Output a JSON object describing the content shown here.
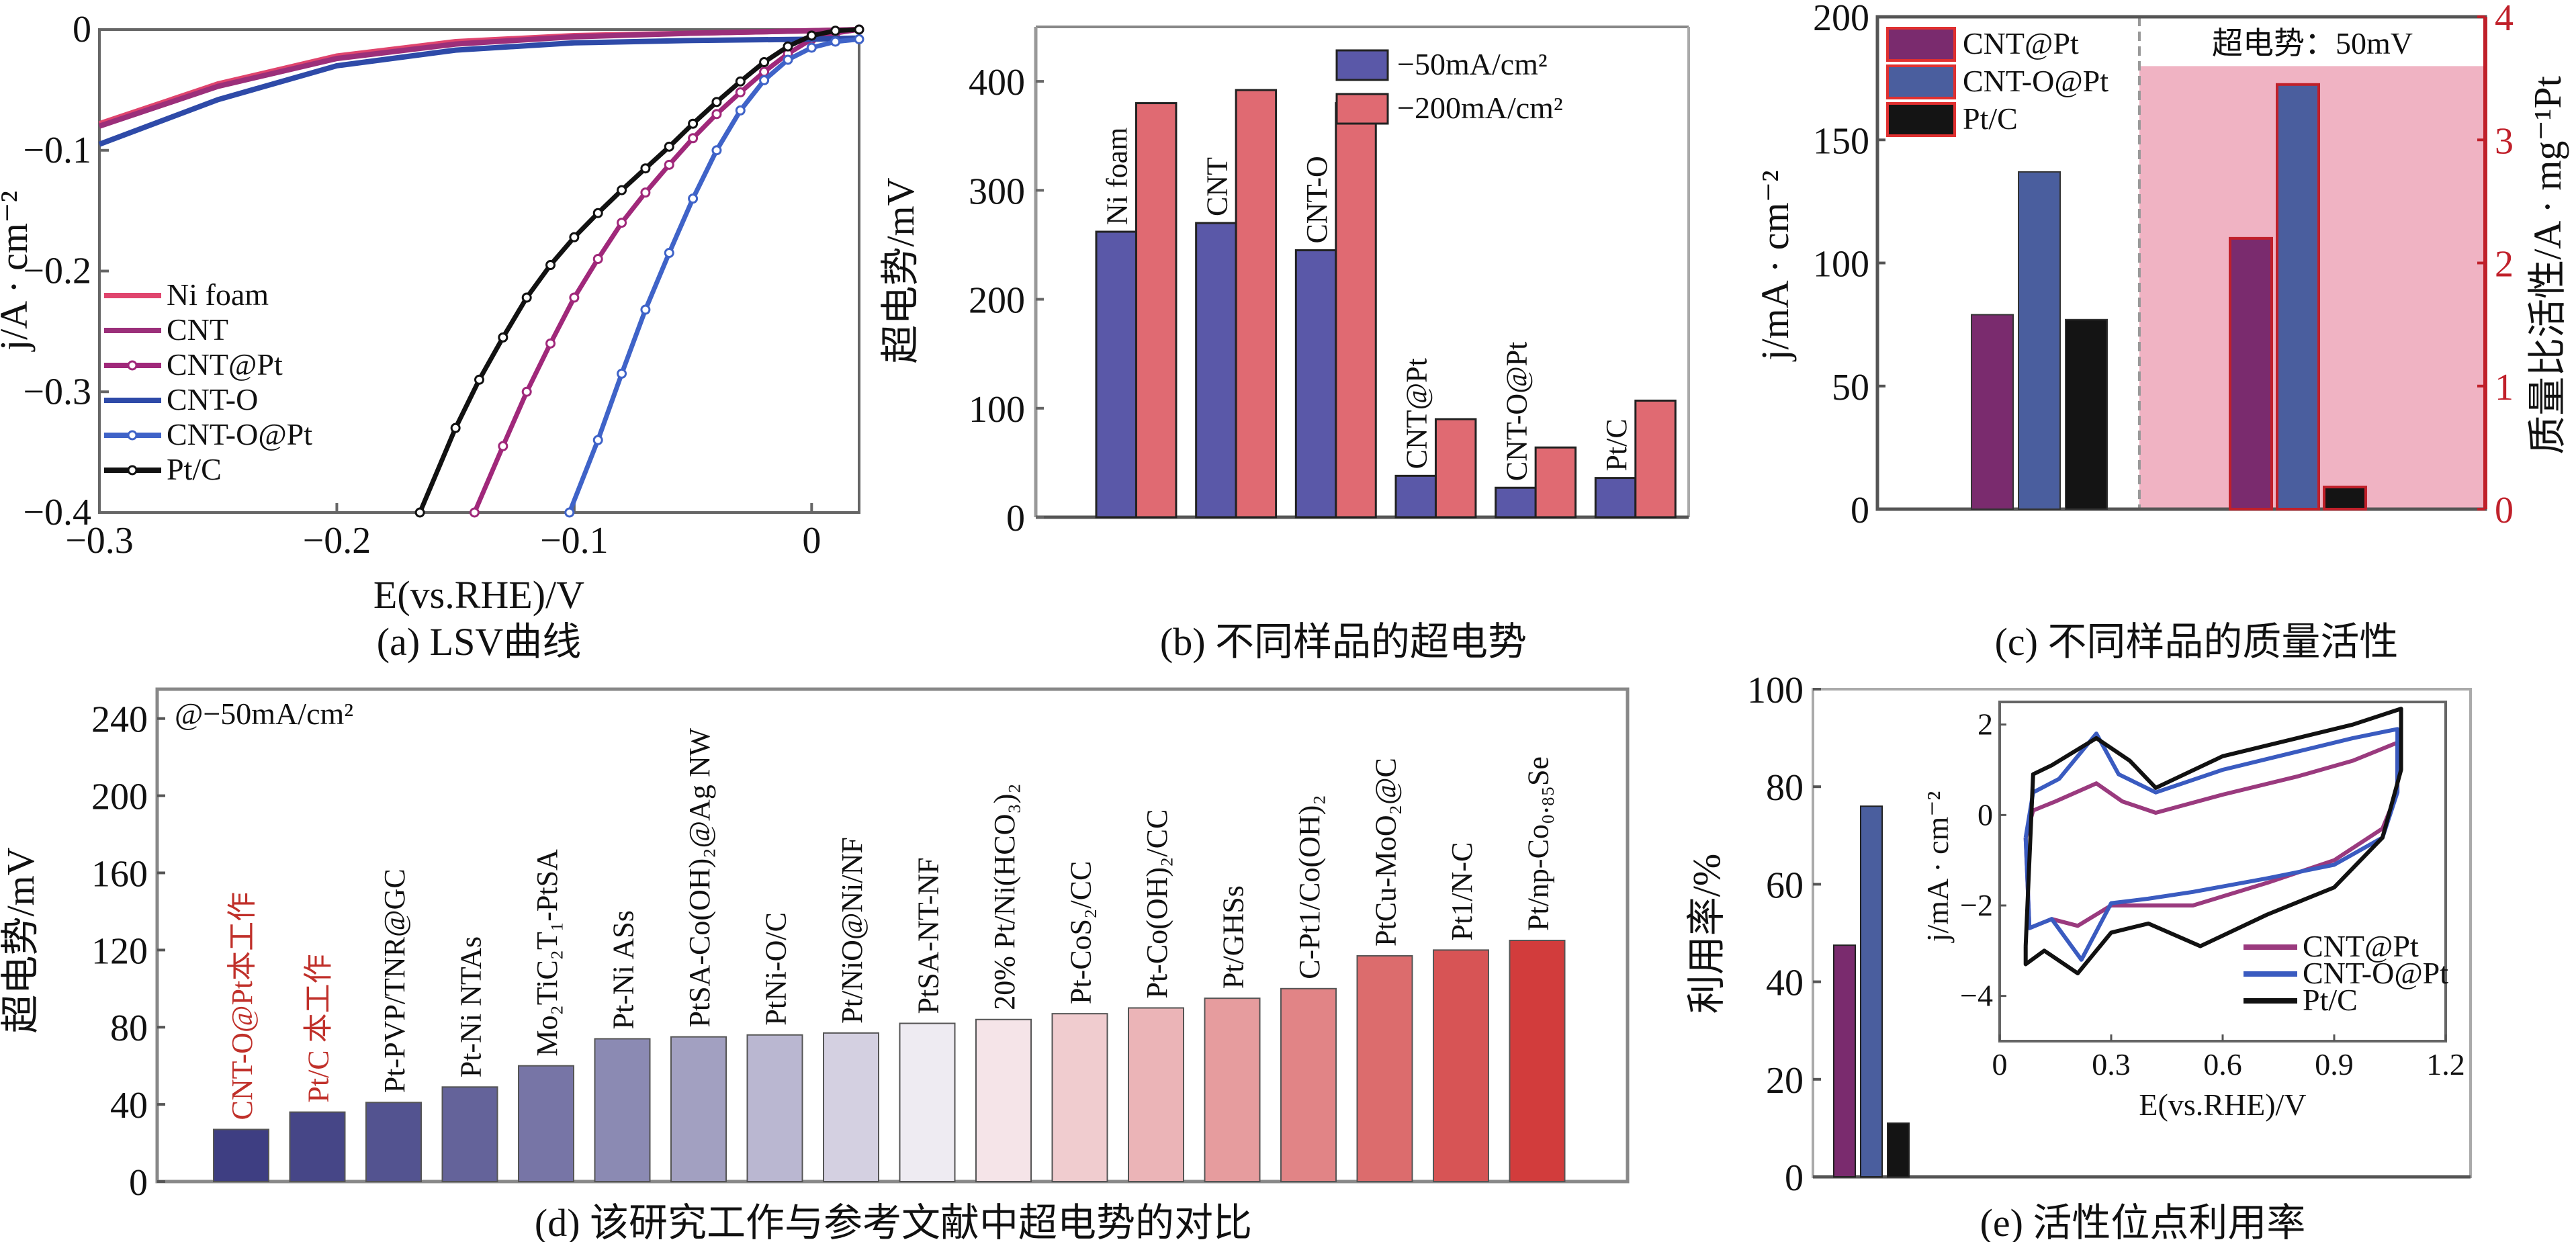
{
  "chart_data": [
    {
      "id": "a",
      "type": "line",
      "caption": "(a) LSV曲线",
      "xlabel": "E(vs.RHE)/V",
      "ylabel": "j/A · cm⁻²",
      "xlim": [
        -0.3,
        0.02
      ],
      "ylim": [
        -0.4,
        0
      ],
      "xticks": [
        -0.3,
        -0.2,
        -0.1,
        0
      ],
      "xtick_labels": [
        "−0.3",
        "−0.2",
        "−0.1",
        "0"
      ],
      "yticks": [
        0,
        -0.1,
        -0.2,
        -0.3,
        -0.4
      ],
      "ytick_labels": [
        "0",
        "−0.1",
        "−0.2",
        "−0.3",
        "−0.4"
      ],
      "legend": "bottom-left",
      "series": [
        {
          "name": "Ni foam",
          "color": "#e0456e",
          "marker": false,
          "x": [
            -0.3,
            -0.25,
            -0.2,
            -0.15,
            -0.1,
            -0.05,
            0,
            0.02
          ],
          "y": [
            -0.078,
            -0.045,
            -0.022,
            -0.01,
            -0.005,
            -0.003,
            -0.001,
            0
          ]
        },
        {
          "name": "CNT",
          "color": "#9b2f7a",
          "marker": false,
          "x": [
            -0.3,
            -0.25,
            -0.2,
            -0.15,
            -0.1,
            -0.05,
            0,
            0.02
          ],
          "y": [
            -0.08,
            -0.047,
            -0.024,
            -0.012,
            -0.006,
            -0.003,
            -0.001,
            0
          ]
        },
        {
          "name": "CNT@Pt",
          "color": "#a0287a",
          "marker": true,
          "x": [
            -0.142,
            -0.13,
            -0.12,
            -0.11,
            -0.1,
            -0.09,
            -0.08,
            -0.07,
            -0.06,
            -0.05,
            -0.04,
            -0.03,
            -0.02,
            -0.01,
            0,
            0.01,
            0.02
          ],
          "y": [
            -0.4,
            -0.345,
            -0.3,
            -0.26,
            -0.222,
            -0.19,
            -0.16,
            -0.135,
            -0.112,
            -0.09,
            -0.07,
            -0.052,
            -0.035,
            -0.02,
            -0.008,
            -0.003,
            0
          ]
        },
        {
          "name": "CNT-O",
          "color": "#2e4aa8",
          "marker": false,
          "x": [
            -0.3,
            -0.25,
            -0.2,
            -0.15,
            -0.1,
            -0.05,
            0,
            0.02
          ],
          "y": [
            -0.095,
            -0.058,
            -0.03,
            -0.017,
            -0.011,
            -0.009,
            -0.008,
            -0.007
          ]
        },
        {
          "name": "CNT-O@Pt",
          "color": "#3f63c8",
          "marker": true,
          "x": [
            -0.102,
            -0.09,
            -0.08,
            -0.07,
            -0.06,
            -0.05,
            -0.04,
            -0.03,
            -0.02,
            -0.01,
            0,
            0.01,
            0.02
          ],
          "y": [
            -0.4,
            -0.34,
            -0.285,
            -0.232,
            -0.185,
            -0.14,
            -0.1,
            -0.067,
            -0.042,
            -0.025,
            -0.015,
            -0.01,
            -0.008
          ]
        },
        {
          "name": "Pt/C",
          "color": "#111111",
          "marker": true,
          "x": [
            -0.165,
            -0.15,
            -0.14,
            -0.13,
            -0.12,
            -0.11,
            -0.1,
            -0.09,
            -0.08,
            -0.07,
            -0.06,
            -0.05,
            -0.04,
            -0.03,
            -0.02,
            -0.01,
            0,
            0.01,
            0.02
          ],
          "y": [
            -0.4,
            -0.33,
            -0.29,
            -0.255,
            -0.222,
            -0.195,
            -0.172,
            -0.152,
            -0.133,
            -0.115,
            -0.097,
            -0.078,
            -0.06,
            -0.043,
            -0.027,
            -0.014,
            -0.005,
            -0.001,
            0
          ]
        }
      ]
    },
    {
      "id": "b",
      "type": "bar",
      "caption": "(b) 不同样品的超电势",
      "ylabel": "超电势/mV",
      "ylim": [
        0,
        450
      ],
      "yticks": [
        0,
        100,
        200,
        300,
        400
      ],
      "categories": [
        "Ni foam",
        "CNT",
        "CNT-O",
        "CNT@Pt",
        "CNT-O@Pt",
        "Pt/C"
      ],
      "legend": "top-right",
      "series": [
        {
          "name": "−50mA/cm²",
          "color": "#5a58a8",
          "values": [
            262,
            270,
            245,
            38,
            27,
            36
          ]
        },
        {
          "name": "−200mA/cm²",
          "color": "#e06a72",
          "values": [
            380,
            392,
            380,
            90,
            64,
            107
          ]
        }
      ]
    },
    {
      "id": "c",
      "type": "bar",
      "caption": "(c) 不同样品的质量活性",
      "ylabel": "j/mA · cm⁻²",
      "ylabel_right": "质量比活性/A · mg⁻¹Pt",
      "ylim": [
        0,
        200
      ],
      "ylim_right": [
        0,
        4
      ],
      "yticks": [
        0,
        50,
        100,
        150,
        200
      ],
      "yticks_right": [
        0,
        1,
        2,
        3,
        4
      ],
      "annotation": "超电势：50mV",
      "legend": "top-left",
      "series": [
        {
          "name": "CNT@Pt",
          "color": "#7a2b6e",
          "current_density": 79,
          "mass_activity": 2.2
        },
        {
          "name": "CNT-O@Pt",
          "color": "#4a5e9e",
          "current_density": 137,
          "mass_activity": 3.45
        },
        {
          "name": "Pt/C",
          "color": "#141414",
          "current_density": 77,
          "mass_activity": 0.18
        }
      ],
      "right_axis_color": "#c0202a",
      "shade_color": "#f0b3c3"
    },
    {
      "id": "d",
      "type": "bar",
      "caption": "(d) 该研究工作与参考文献中超电势的对比",
      "ylabel": "超电势/mV",
      "annotation": "@−50mA/cm²",
      "ylim": [
        0,
        250
      ],
      "yticks": [
        0,
        40,
        80,
        120,
        160,
        200,
        240
      ],
      "categories": [
        "CNT-O@Pt本工作",
        "Pt/C 本工作",
        "Pt-PVP/TNR@GC",
        "Pt-Ni NTAs",
        "Mo₂TiC₂T₁-PtSA",
        "Pt-Ni ASs",
        "PtSA-Co(OH)₂@Ag NW",
        "PtNi-O/C",
        "Pt/NiO@Ni/NF",
        "PtSA-NT-NF",
        "20% Pt/Ni(HCO₃)₂",
        "Pt-CoS₂/CC",
        "Pt-Co(OH)₂/CC",
        "Pt/GHSs",
        "C-Pt1/Co(OH)₂",
        "PtCu-MoO₂@C",
        "Pt1/N-C",
        "Pt/np-Co₀.₈₅Se"
      ],
      "values": [
        27,
        36,
        41,
        49,
        60,
        74,
        75,
        76,
        77,
        82,
        84,
        87,
        90,
        95,
        100,
        117,
        120,
        125
      ],
      "highlight_color": "#c0302a",
      "highlight_count": 2
    },
    {
      "id": "e",
      "type": "bar",
      "caption": "(e) 活性位点利用率",
      "ylabel": "利用率/%",
      "ylim": [
        0,
        100
      ],
      "yticks": [
        0,
        20,
        40,
        60,
        80,
        100
      ],
      "categories": [
        "CNT@Pt",
        "CNT-O@Pt",
        "Pt/C"
      ],
      "values": [
        47.5,
        76,
        11
      ],
      "colors": [
        "#7a2b6e",
        "#4a5e9e",
        "#141414"
      ],
      "inset": {
        "type": "line",
        "xlabel": "E(vs.RHE)/V",
        "ylabel": "j/mA · cm⁻²",
        "xlim": [
          0,
          1.2
        ],
        "ylim": [
          -5,
          2.5
        ],
        "xticks": [
          0,
          0.3,
          0.6,
          0.9,
          1.2
        ],
        "yticks": [
          -4,
          -2,
          0,
          2
        ],
        "ytick_labels": [
          "−4",
          "−2",
          "0",
          "2"
        ],
        "legend": "bottom-right",
        "series": [
          {
            "name": "CNT@Pt",
            "color": "#9a3a7e",
            "x": [
              0.07,
              0.09,
              0.15,
              0.26,
              0.33,
              0.42,
              0.6,
              0.8,
              0.95,
              1.07,
              1.07,
              1.03,
              0.9,
              0.72,
              0.52,
              0.4,
              0.3,
              0.21,
              0.14,
              0.08,
              0.07
            ],
            "y": [
              -0.5,
              0.1,
              0.3,
              0.7,
              0.3,
              0.05,
              0.45,
              0.85,
              1.2,
              1.6,
              0.5,
              -0.3,
              -1.0,
              -1.5,
              -2.0,
              -2.0,
              -2.0,
              -2.45,
              -2.3,
              -2.5,
              -0.5
            ]
          },
          {
            "name": "CNT-O@Pt",
            "color": "#3a5bc0",
            "x": [
              0.07,
              0.09,
              0.16,
              0.26,
              0.32,
              0.42,
              0.6,
              0.8,
              0.95,
              1.07,
              1.07,
              1.03,
              0.9,
              0.72,
              0.52,
              0.4,
              0.3,
              0.22,
              0.14,
              0.08,
              0.07
            ],
            "y": [
              -0.5,
              0.5,
              0.8,
              1.8,
              0.9,
              0.5,
              1.0,
              1.4,
              1.7,
              1.9,
              0.5,
              -0.5,
              -1.1,
              -1.4,
              -1.7,
              -1.85,
              -1.95,
              -3.2,
              -2.3,
              -2.5,
              -0.5
            ]
          },
          {
            "name": "Pt/C",
            "color": "#111111",
            "x": [
              0.07,
              0.09,
              0.14,
              0.26,
              0.35,
              0.42,
              0.6,
              0.8,
              0.95,
              1.08,
              1.08,
              1.03,
              0.9,
              0.72,
              0.54,
              0.4,
              0.3,
              0.21,
              0.12,
              0.07,
              0.07
            ],
            "y": [
              -2.9,
              0.9,
              1.1,
              1.7,
              1.2,
              0.6,
              1.3,
              1.7,
              2.0,
              2.35,
              1.0,
              -0.5,
              -1.6,
              -2.2,
              -2.9,
              -2.4,
              -2.6,
              -3.5,
              -3.0,
              -3.3,
              -2.9
            ]
          }
        ]
      }
    }
  ]
}
